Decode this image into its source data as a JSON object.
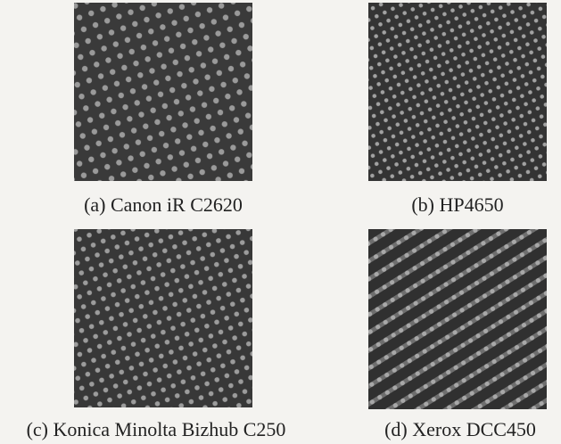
{
  "figures": [
    {
      "caption": "(a) Canon iR C2620"
    },
    {
      "caption": "(b) HP4650"
    },
    {
      "caption": "(c) Konica Minolta Bizhub C250"
    },
    {
      "caption": "(d) Xerox DCC450"
    }
  ]
}
